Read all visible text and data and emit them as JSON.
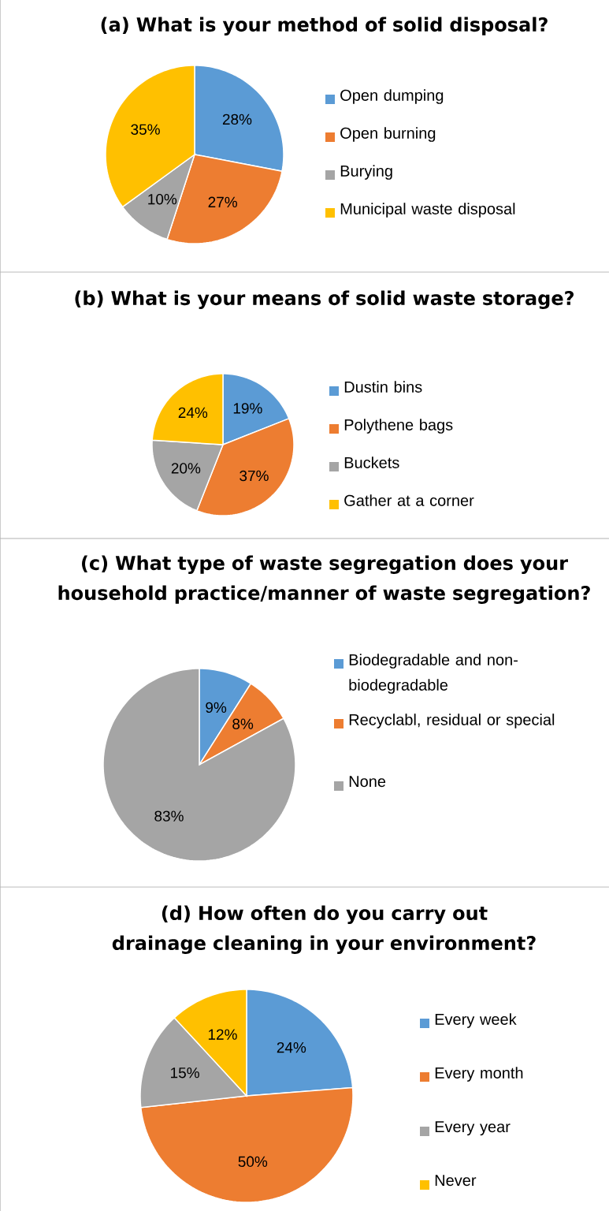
{
  "chart_data": [
    {
      "type": "pie",
      "title": "(a) What is your method of solid disposal?",
      "categories": [
        "Open dumping",
        "Open burning",
        "Burying",
        "Municipal waste disposal"
      ],
      "values": [
        28,
        27,
        10,
        35
      ],
      "value_labels": [
        "28%",
        "27%",
        "10%",
        "35%"
      ],
      "colors": [
        "#5b9bd5",
        "#ed7d31",
        "#a5a5a5",
        "#ffc000"
      ],
      "legend": "right"
    },
    {
      "type": "pie",
      "title": "(b) What is your means of solid waste storage?",
      "categories": [
        "Dustin bins",
        "Polythene bags",
        "Buckets",
        "Gather at a corner"
      ],
      "values": [
        19,
        37,
        20,
        24
      ],
      "value_labels": [
        "19%",
        "37%",
        "20%",
        "24%"
      ],
      "colors": [
        "#5b9bd5",
        "#ed7d31",
        "#a5a5a5",
        "#ffc000"
      ],
      "legend": "right"
    },
    {
      "type": "pie",
      "title": "(c) What type of waste segregation does your household practice/manner of waste segregation?",
      "categories": [
        "Biodegradable and non-biodegradable",
        "Recyclabl, residual or special",
        "None"
      ],
      "values": [
        9,
        8,
        83
      ],
      "value_labels": [
        "9%",
        "8%",
        "83%"
      ],
      "colors": [
        "#5b9bd5",
        "#ed7d31",
        "#a5a5a5"
      ],
      "legend": "right"
    },
    {
      "type": "pie",
      "title": "(d) How often do you carry out drainage cleaning in your environment?",
      "categories": [
        "Every week",
        "Every month",
        "Every year",
        "Never"
      ],
      "values": [
        24,
        50,
        15,
        12
      ],
      "value_labels": [
        "24%",
        "50%",
        "15%",
        "12%"
      ],
      "colors": [
        "#5b9bd5",
        "#ed7d31",
        "#a5a5a5",
        "#ffc000"
      ],
      "legend": "right"
    }
  ]
}
